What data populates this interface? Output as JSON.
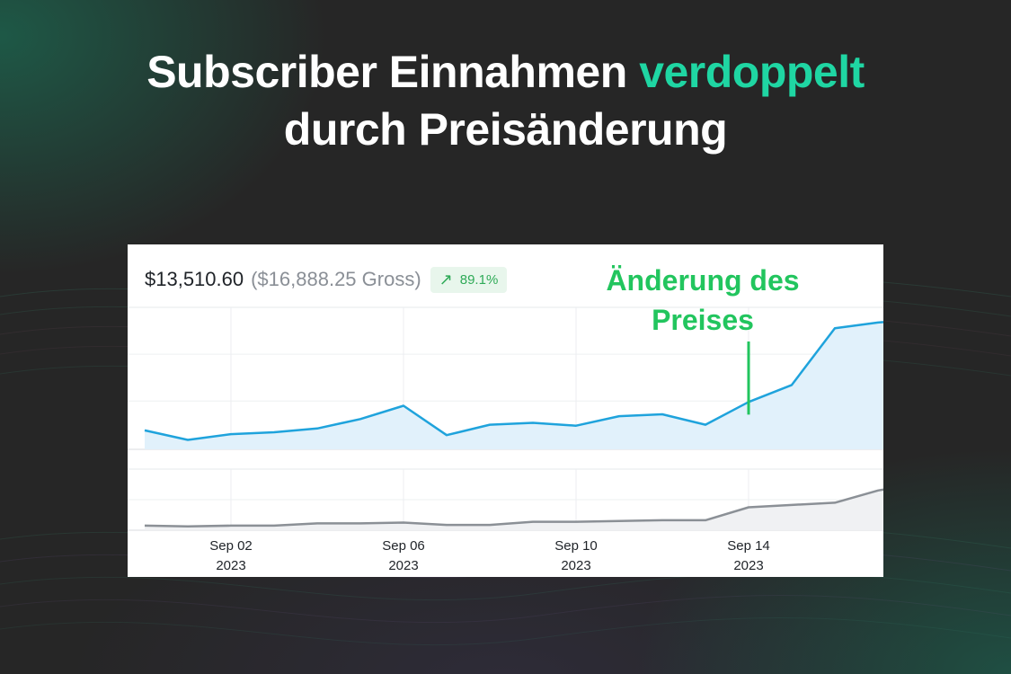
{
  "headline": {
    "line1_prefix": "Subscriber Einnahmen ",
    "line1_accent": "verdoppelt",
    "line2": "durch Preisänderung"
  },
  "card": {
    "net": "$13,510.60",
    "gross": "($16,888.25 Gross)",
    "change_pct": "89.1%",
    "change_icon": "trend-up-arrow-icon"
  },
  "annotation": {
    "line1": "Änderung des",
    "line2": "Preises"
  },
  "colors": {
    "background": "#262626",
    "accent": "#1fd6a3",
    "annotation": "#22c55e",
    "revenue_line": "#1fa3dc",
    "revenue_fill": "#e1f1fb",
    "secondary_line": "#8b9096"
  },
  "chart_data": {
    "type": "area",
    "x": [
      "2023-08-31",
      "2023-09-01",
      "2023-09-02",
      "2023-09-03",
      "2023-09-04",
      "2023-09-05",
      "2023-09-06",
      "2023-09-07",
      "2023-09-08",
      "2023-09-09",
      "2023-09-10",
      "2023-09-11",
      "2023-09-12",
      "2023-09-13",
      "2023-09-14",
      "2023-09-15",
      "2023-09-16",
      "2023-09-17",
      "2023-09-18"
    ],
    "x_ticks": [
      {
        "date": "2023-09-02",
        "line1": "Sep 02",
        "line2": "2023"
      },
      {
        "date": "2023-09-06",
        "line1": "Sep 06",
        "line2": "2023"
      },
      {
        "date": "2023-09-10",
        "line1": "Sep 10",
        "line2": "2023"
      },
      {
        "date": "2023-09-14",
        "line1": "Sep 14",
        "line2": "2023"
      }
    ],
    "series": [
      {
        "values": [
          20,
          10,
          16,
          18,
          22,
          32,
          46,
          15,
          26,
          28,
          25,
          35,
          37,
          26,
          50,
          68,
          128,
          134,
          138
        ]
      },
      {
        "values": [
          6,
          5,
          6,
          6,
          9,
          9,
          10,
          7,
          7,
          11,
          11,
          12,
          13,
          13,
          30,
          33,
          36,
          52,
          62
        ]
      }
    ],
    "annotation_date": "2023-09-14",
    "grid": true
  }
}
